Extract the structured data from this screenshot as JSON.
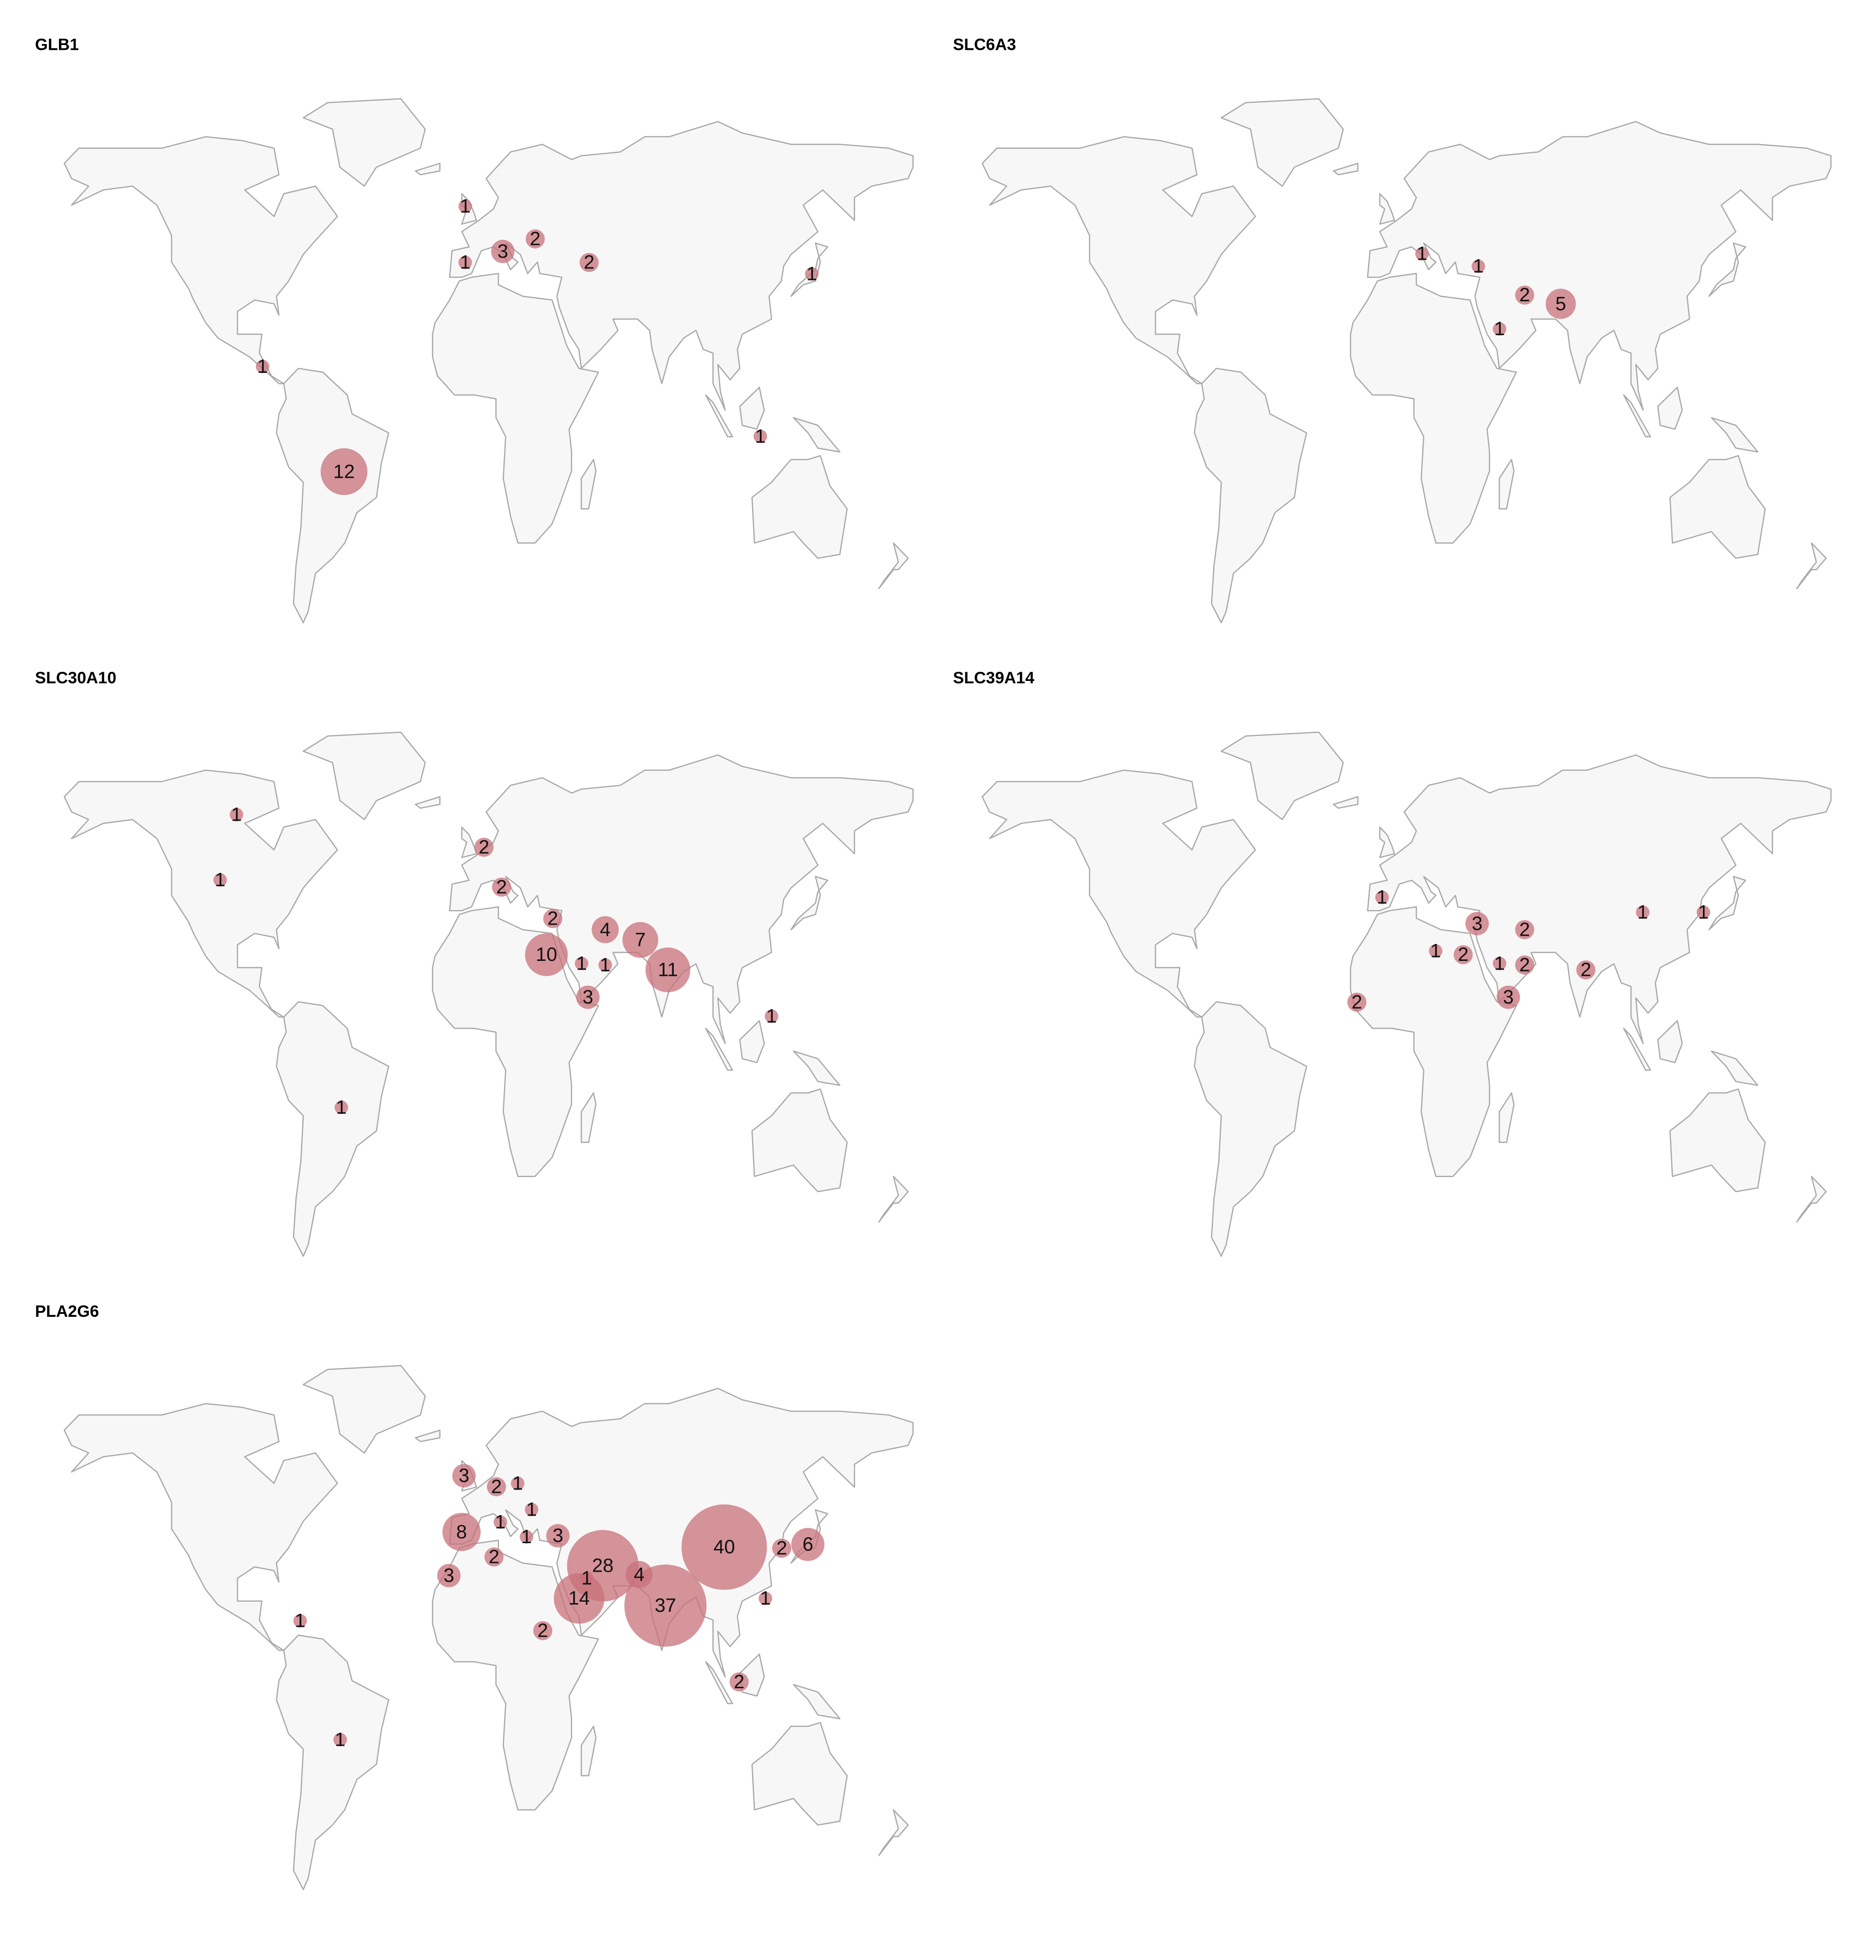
{
  "chart_data": [
    {
      "type": "bubble-map",
      "title": "GLB1",
      "color": "#c8707a",
      "x": [
        -3.6,
        11.8,
        25.1,
        -3.6,
        47.2,
        138.5,
        -86.7,
        117.4,
        -53.3
      ],
      "y": [
        54.7,
        42.8,
        46.1,
        39.9,
        39.9,
        36.9,
        12.5,
        -5.9,
        -15.2
      ],
      "values": [
        1,
        3,
        2,
        1,
        2,
        1,
        1,
        1,
        12
      ]
    },
    {
      "type": "bubble-map",
      "title": "SLC6A3",
      "color": "#c8707a",
      "x": [
        12.3,
        35.4,
        54.4,
        69.2,
        44.1
      ],
      "y": [
        42.2,
        38.9,
        31.3,
        29.0,
        22.4
      ],
      "values": [
        1,
        1,
        2,
        5,
        1
      ]
    },
    {
      "type": "bubble-map",
      "title": "SLC30A10",
      "color": "#c8707a",
      "x": [
        -97.4,
        -104.1,
        4.1,
        11.3,
        32.3,
        53.8,
        68.2,
        29.7,
        44.1,
        53.8,
        79.5,
        46.7,
        122.0,
        -54.4
      ],
      "y": [
        61.3,
        44.1,
        52.7,
        42.2,
        33.9,
        31.0,
        28.3,
        24.4,
        22.1,
        21.7,
        20.4,
        13.2,
        8.2,
        -15.8
      ],
      "values": [
        1,
        1,
        2,
        2,
        2,
        4,
        7,
        10,
        1,
        1,
        11,
        3,
        1,
        1
      ]
    },
    {
      "type": "bubble-map",
      "title": "SLC39A14",
      "color": "#c8707a",
      "x": [
        -4.1,
        34.9,
        54.4,
        102.8,
        127.7,
        17.9,
        29.2,
        44.1,
        54.4,
        79.5,
        47.7,
        -14.4
      ],
      "y": [
        39.5,
        32.6,
        31.0,
        35.6,
        35.6,
        25.4,
        24.4,
        22.1,
        21.7,
        20.4,
        13.2,
        11.9
      ],
      "values": [
        1,
        3,
        2,
        1,
        1,
        1,
        2,
        1,
        2,
        2,
        3,
        2
      ]
    },
    {
      "type": "bubble-map",
      "title": "PLA2G6",
      "color": "#c8707a",
      "x": [
        -4.1,
        9.2,
        17.9,
        23.6,
        -5.1,
        10.8,
        21.5,
        34.4,
        8.2,
        -10.3,
        52.8,
        46.2,
        67.7,
        102.6,
        126.2,
        136.9,
        43.1,
        78.5,
        119.5,
        -71.3,
        28.2,
        108.7,
        -54.9
      ],
      "y": [
        54.0,
        51.1,
        52.0,
        45.1,
        39.2,
        41.8,
        37.9,
        38.2,
        32.6,
        27.7,
        30.3,
        27.0,
        28.0,
        35.2,
        34.9,
        35.9,
        21.7,
        19.8,
        21.7,
        15.8,
        13.2,
        -0.3,
        -15.5
      ],
      "values": [
        3,
        2,
        1,
        1,
        8,
        1,
        1,
        3,
        2,
        3,
        28,
        1,
        4,
        40,
        2,
        6,
        14,
        37,
        1,
        1,
        2,
        2,
        1
      ]
    }
  ]
}
